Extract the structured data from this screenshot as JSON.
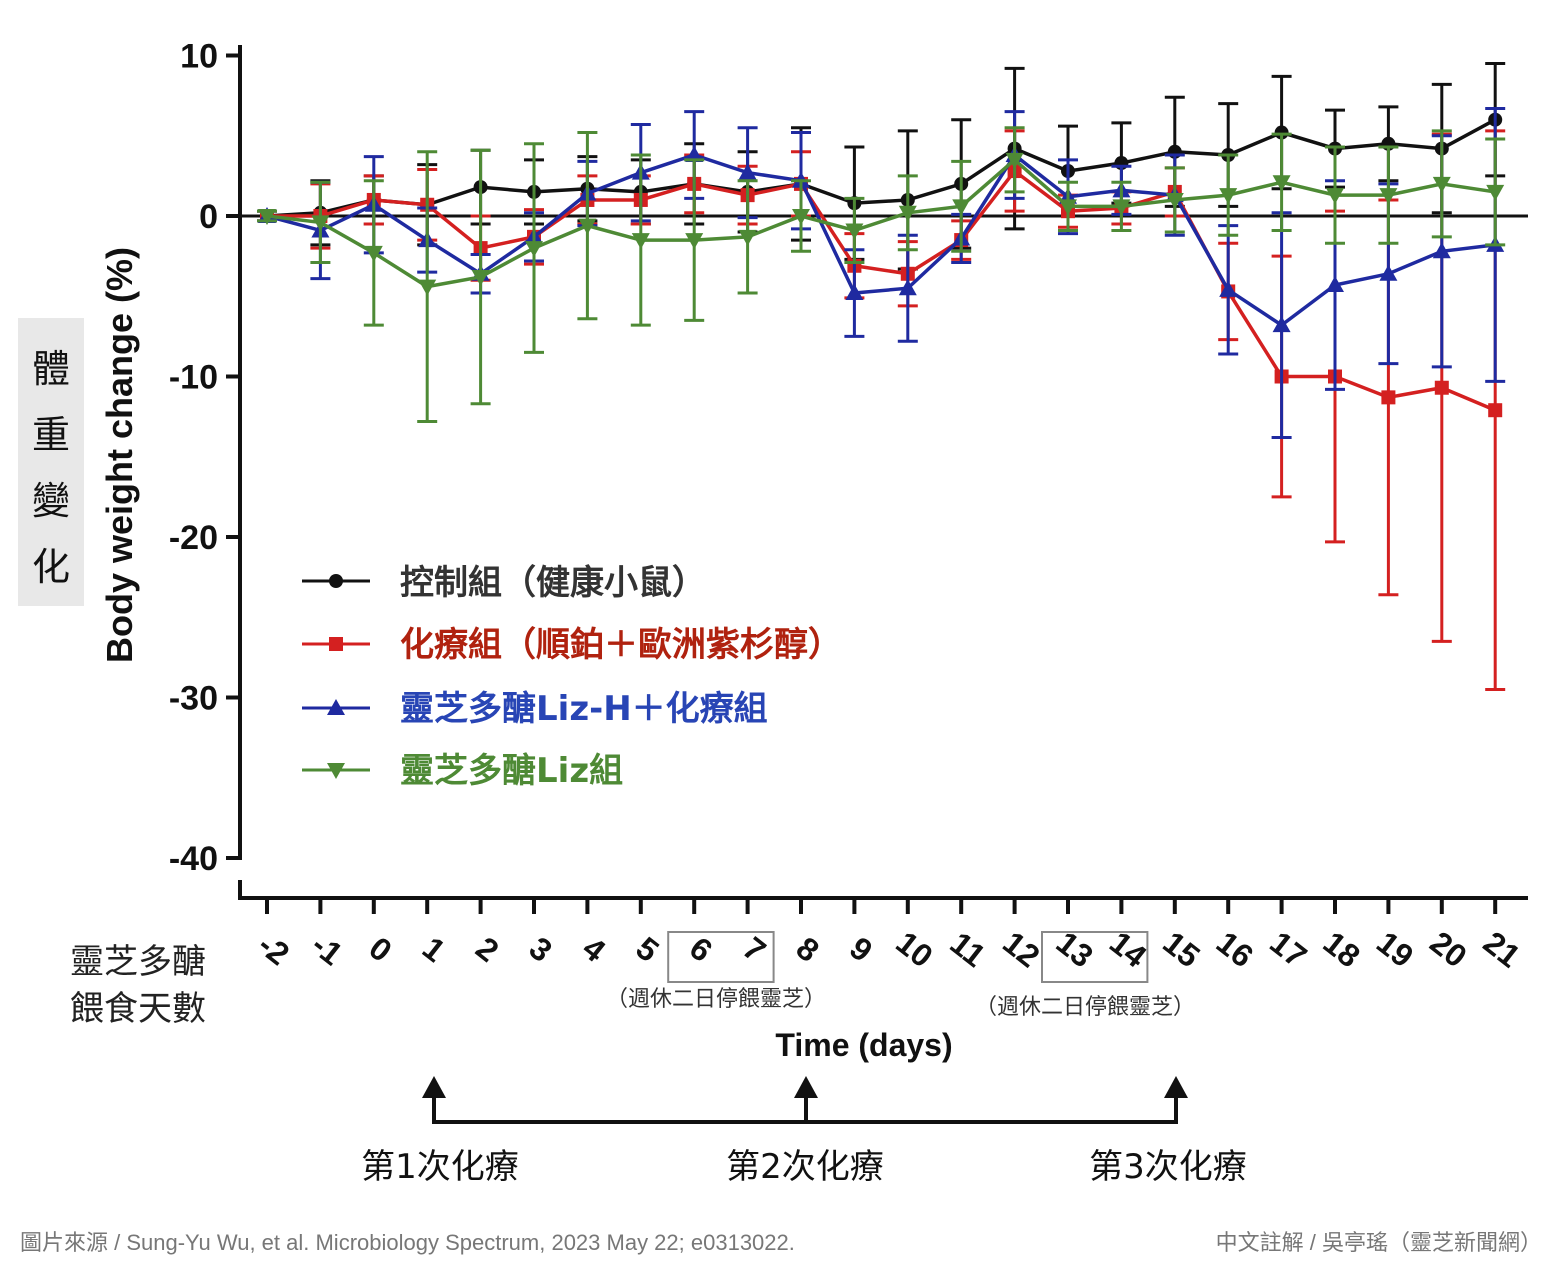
{
  "chart_data": {
    "type": "line",
    "ylabel": "Body weight change (%)",
    "ylabel_zh": [
      "體",
      "重",
      "變",
      "化"
    ],
    "xlabel": "Time (days)",
    "x_row_label": [
      "靈芝多醣",
      "餵食天數"
    ],
    "ylim": [
      -40,
      10
    ],
    "yticks": [
      10,
      0,
      -10,
      -20,
      -30,
      -40
    ],
    "ytick_labels": [
      "10",
      "0",
      "-10",
      "-20",
      "-30",
      "-40"
    ],
    "x": [
      -2,
      -1,
      0,
      1,
      2,
      3,
      4,
      5,
      6,
      7,
      8,
      9,
      10,
      11,
      12,
      13,
      14,
      15,
      16,
      17,
      18,
      19,
      20,
      21
    ],
    "xtick_labels": [
      "-2",
      "-1",
      "0",
      "1",
      "2",
      "3",
      "4",
      "5",
      "6",
      "7",
      "8",
      "9",
      "10",
      "11",
      "12",
      "13",
      "14",
      "15",
      "16",
      "17",
      "18",
      "19",
      "20",
      "21"
    ],
    "boxed_days": [
      [
        6,
        7
      ],
      [
        13,
        14
      ]
    ],
    "box_notes": [
      "（週休二日停餵靈芝）",
      "（週休二日停餵靈芝）"
    ],
    "series": [
      {
        "name": "控制組（健康小鼠）",
        "color": "#111111",
        "marker": "circle",
        "x": [
          -2,
          -1,
          0,
          1,
          2,
          3,
          4,
          5,
          6,
          7,
          8,
          9,
          10,
          11,
          12,
          13,
          14,
          15,
          16,
          17,
          18,
          19,
          20,
          21
        ],
        "values": [
          0,
          0.2,
          1,
          0.7,
          1.8,
          1.5,
          1.7,
          1.5,
          2,
          1.5,
          2,
          0.8,
          1,
          2,
          4.2,
          2.8,
          3.3,
          4,
          3.8,
          5.2,
          4.2,
          4.5,
          4.2,
          6
        ],
        "err": [
          0.3,
          2,
          1.5,
          2.5,
          2.3,
          2,
          2,
          2,
          2.5,
          2.5,
          3.5,
          3.5,
          4.3,
          4,
          5,
          2.8,
          2.5,
          3.4,
          3.2,
          3.5,
          2.4,
          2.3,
          4,
          3.5
        ]
      },
      {
        "name": "化療組（順鉑＋歐洲紫杉醇）",
        "color": "#d42020",
        "marker": "square",
        "x": [
          -2,
          -1,
          0,
          1,
          2,
          3,
          4,
          5,
          6,
          7,
          8,
          9,
          10,
          11,
          12,
          13,
          14,
          15,
          16,
          17,
          18,
          19,
          20,
          21
        ],
        "values": [
          0,
          0,
          1,
          0.7,
          -2,
          -1.3,
          1,
          1,
          2,
          1.3,
          2,
          -3.1,
          -3.6,
          -1.5,
          2.8,
          0.3,
          0.5,
          1.5,
          -4.7,
          -10,
          -10,
          -11.3,
          -10.7,
          -12.1
        ],
        "err": [
          0.3,
          2,
          1.5,
          2.2,
          2,
          1.7,
          1.5,
          1.5,
          1.8,
          1.8,
          2,
          2,
          2,
          1.2,
          2.5,
          1,
          1,
          1.5,
          3,
          7.5,
          10.3,
          12.3,
          15.8,
          17.4
        ]
      },
      {
        "name": "靈芝多醣Liz-H＋化療組",
        "color": "#1f2aa0",
        "marker": "triangle-up",
        "x": [
          -2,
          -1,
          0,
          1,
          2,
          3,
          4,
          5,
          6,
          7,
          8,
          9,
          10,
          11,
          12,
          13,
          14,
          15,
          16,
          17,
          18,
          19,
          20,
          21
        ],
        "values": [
          0,
          -0.9,
          0.7,
          -1.5,
          -3.6,
          -1.3,
          1.4,
          2.7,
          3.8,
          2.7,
          2.2,
          -4.8,
          -4.5,
          -1.4,
          3.8,
          1.2,
          1.6,
          1.3,
          -4.6,
          -6.8,
          -4.3,
          -3.6,
          -2.2,
          -1.8
        ],
        "err": [
          0.3,
          3,
          3,
          2,
          1.2,
          1.5,
          2,
          3,
          2.7,
          2.8,
          3,
          2.7,
          3.3,
          1.5,
          2.7,
          2.3,
          1.5,
          2.5,
          4,
          7,
          6.5,
          5.6,
          7.2,
          8.5
        ]
      },
      {
        "name": "靈芝多醣Liz組",
        "color": "#4e8a35",
        "marker": "triangle-down",
        "x": [
          -2,
          -1,
          0,
          1,
          2,
          3,
          4,
          5,
          6,
          7,
          8,
          9,
          10,
          11,
          12,
          13,
          14,
          15,
          16,
          17,
          18,
          19,
          20,
          21
        ],
        "values": [
          0,
          -0.4,
          -2.3,
          -4.4,
          -3.8,
          -2,
          -0.6,
          -1.5,
          -1.5,
          -1.3,
          0,
          -0.9,
          0.2,
          0.6,
          3.5,
          0.6,
          0.6,
          1,
          1.3,
          2.1,
          1.3,
          1.3,
          2,
          1.5
        ],
        "err": [
          0.3,
          2.5,
          4.5,
          8.4,
          7.9,
          6.5,
          5.8,
          5.3,
          5,
          3.5,
          2.2,
          2,
          2.3,
          2.8,
          2,
          1.5,
          1.5,
          2,
          2.5,
          3,
          3,
          3,
          3.3,
          3.3
        ]
      }
    ],
    "chemo_days": [
      1,
      8,
      15
    ],
    "chemo_labels": [
      "第1次化療",
      "第2次化療",
      "第3次化療"
    ]
  },
  "footer": {
    "source": "圖片來源 / Sung-Yu Wu, et al. Microbiology Spectrum, 2023 May 22; e0313022.",
    "credit": "中文註解 / 吳亭瑤（靈芝新聞網）"
  }
}
